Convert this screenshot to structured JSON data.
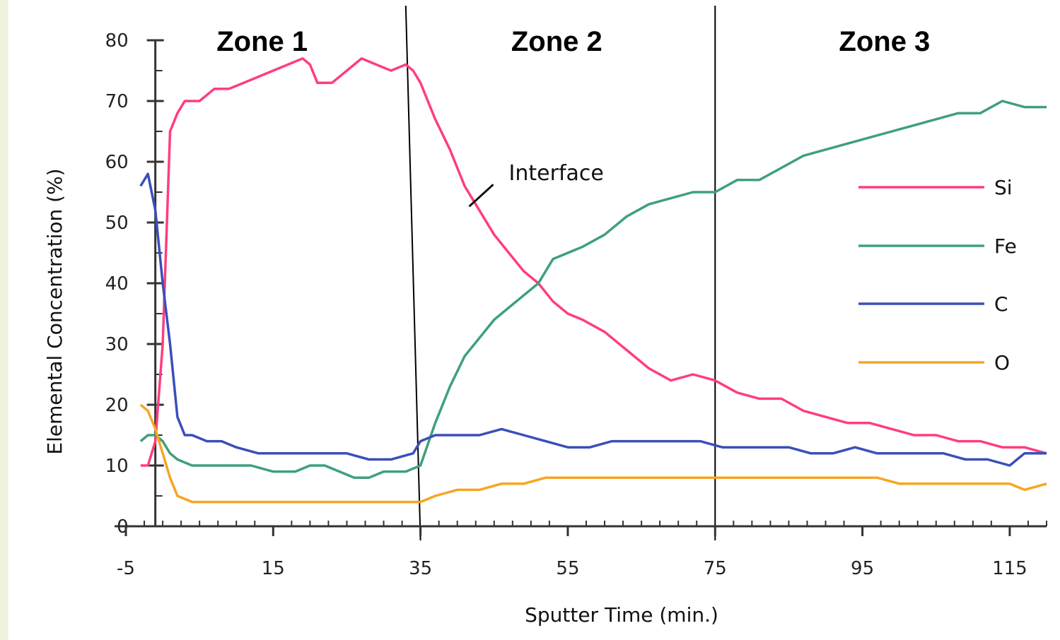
{
  "chart_data": {
    "type": "line",
    "title": "",
    "xlabel": "Sputter Time (min.)",
    "ylabel": "Elemental Concentration (%)",
    "xlim": [
      -5,
      120
    ],
    "ylim": [
      0,
      80
    ],
    "xticks": [
      -5,
      15,
      35,
      55,
      75,
      95,
      115
    ],
    "yticks": [
      0,
      10,
      20,
      30,
      40,
      50,
      60,
      70,
      80
    ],
    "grid": false,
    "legend_position": "right",
    "zones": [
      "Zone 1",
      "Zone 2",
      "Zone 3"
    ],
    "zone_boundaries": [
      35,
      75
    ],
    "annotation": {
      "text": "Interface",
      "x": 42,
      "y": 53
    },
    "series": [
      {
        "name": "Si",
        "color": "#ff3d7f",
        "x": [
          -3,
          -2,
          -1,
          0,
          1,
          2,
          3,
          5,
          7,
          9,
          11,
          13,
          15,
          17,
          19,
          20,
          21,
          23,
          25,
          27,
          29,
          31,
          33,
          34,
          35,
          37,
          39,
          41,
          43,
          45,
          47,
          49,
          51,
          53,
          55,
          57,
          60,
          63,
          66,
          69,
          72,
          75,
          78,
          81,
          84,
          87,
          90,
          93,
          96,
          99,
          102,
          105,
          108,
          111,
          114,
          117,
          120
        ],
        "y": [
          10,
          10,
          14,
          30,
          65,
          68,
          70,
          70,
          72,
          72,
          73,
          74,
          75,
          76,
          77,
          76,
          73,
          73,
          75,
          77,
          76,
          75,
          76,
          75,
          73,
          67,
          62,
          56,
          52,
          48,
          45,
          42,
          40,
          37,
          35,
          34,
          32,
          29,
          26,
          24,
          25,
          24,
          22,
          21,
          21,
          19,
          18,
          17,
          17,
          16,
          15,
          15,
          14,
          14,
          13,
          13,
          12
        ]
      },
      {
        "name": "Fe",
        "color": "#3fa07a",
        "x": [
          -3,
          -2,
          -1,
          0,
          1,
          2,
          4,
          6,
          8,
          10,
          12,
          15,
          18,
          20,
          22,
          24,
          26,
          28,
          30,
          33,
          35,
          37,
          39,
          41,
          43,
          45,
          47,
          49,
          51,
          53,
          55,
          57,
          60,
          63,
          66,
          69,
          72,
          75,
          78,
          81,
          84,
          87,
          90,
          93,
          96,
          99,
          102,
          105,
          108,
          111,
          114,
          117,
          120
        ],
        "y": [
          14,
          15,
          15,
          14,
          12,
          11,
          10,
          10,
          10,
          10,
          10,
          9,
          9,
          10,
          10,
          9,
          8,
          8,
          9,
          9,
          10,
          17,
          23,
          28,
          31,
          34,
          36,
          38,
          40,
          44,
          45,
          46,
          48,
          51,
          53,
          54,
          55,
          55,
          57,
          57,
          59,
          61,
          62,
          63,
          64,
          65,
          66,
          67,
          68,
          68,
          70,
          69,
          69
        ]
      },
      {
        "name": "C",
        "color": "#3a4fb8",
        "x": [
          -3,
          -2,
          -1,
          0,
          1,
          2,
          3,
          4,
          6,
          8,
          10,
          13,
          16,
          19,
          22,
          25,
          28,
          31,
          34,
          35,
          37,
          40,
          43,
          46,
          49,
          52,
          55,
          58,
          61,
          64,
          67,
          70,
          73,
          76,
          79,
          82,
          85,
          88,
          91,
          94,
          97,
          100,
          103,
          106,
          109,
          112,
          115,
          117,
          120
        ],
        "y": [
          56,
          58,
          52,
          40,
          30,
          18,
          15,
          15,
          14,
          14,
          13,
          12,
          12,
          12,
          12,
          12,
          11,
          11,
          12,
          14,
          15,
          15,
          15,
          16,
          15,
          14,
          13,
          13,
          14,
          14,
          14,
          14,
          14,
          13,
          13,
          13,
          13,
          12,
          12,
          13,
          12,
          12,
          12,
          12,
          11,
          11,
          10,
          12,
          12
        ]
      },
      {
        "name": "O",
        "color": "#f5a623",
        "x": [
          -3,
          -2,
          -1,
          0,
          1,
          2,
          4,
          6,
          8,
          10,
          13,
          16,
          19,
          22,
          25,
          28,
          31,
          35,
          37,
          40,
          43,
          46,
          49,
          52,
          55,
          58,
          61,
          64,
          67,
          70,
          73,
          76,
          79,
          82,
          85,
          88,
          91,
          94,
          97,
          100,
          103,
          106,
          109,
          112,
          115,
          117,
          120
        ],
        "y": [
          20,
          19,
          16,
          12,
          8,
          5,
          4,
          4,
          4,
          4,
          4,
          4,
          4,
          4,
          4,
          4,
          4,
          4,
          5,
          6,
          6,
          7,
          7,
          8,
          8,
          8,
          8,
          8,
          8,
          8,
          8,
          8,
          8,
          8,
          8,
          8,
          8,
          8,
          8,
          7,
          7,
          7,
          7,
          7,
          7,
          6,
          7
        ]
      }
    ]
  }
}
